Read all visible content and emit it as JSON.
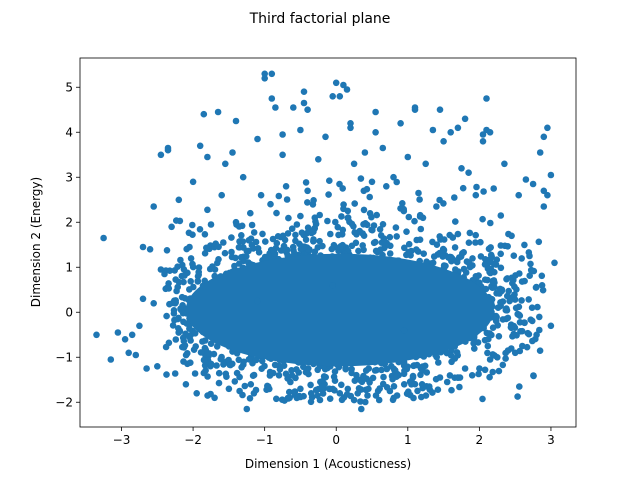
{
  "chart_data": {
    "type": "scatter",
    "title": "Third factorial plane",
    "xlabel": "Dimension 1 (Acousticness)",
    "ylabel": "Dimension 2 (Energy)",
    "xlim": [
      -3.58,
      3.35
    ],
    "ylim": [
      -2.55,
      5.65
    ],
    "xticks": [
      -3,
      -2,
      -1,
      0,
      1,
      2,
      3
    ],
    "xtick_labels": [
      "−3",
      "−2",
      "−1",
      "0",
      "1",
      "2",
      "3"
    ],
    "yticks": [
      -2,
      -1,
      0,
      1,
      2,
      3,
      4,
      5
    ],
    "ytick_labels": [
      "−2",
      "−1",
      "0",
      "1",
      "2",
      "3",
      "4",
      "5"
    ],
    "grid": false,
    "legend": "none",
    "marker_color": "#1f77b4",
    "series": [
      {
        "x": [
          -3.25,
          -3.35,
          -3.15,
          -3.05,
          -2.95,
          -2.9,
          -2.85,
          -2.8,
          -2.75,
          -2.7,
          -2.7,
          -2.65,
          -2.6,
          -2.55,
          -2.55,
          -2.5,
          -2.45,
          -2.4,
          -2.35,
          -2.3,
          -2.25,
          -2.2,
          -2.15,
          -2.1,
          -2.05,
          -2.0,
          -1.95,
          -1.9,
          -1.85,
          -1.8,
          -1.75,
          -1.7,
          -1.65,
          -1.6,
          -1.55,
          -1.5,
          -1.45,
          -1.4,
          -1.35,
          -1.3,
          -1.25,
          -1.2,
          -1.15,
          -1.1,
          -1.05,
          -1.0,
          -0.95,
          -0.9,
          -0.85,
          -0.8,
          -0.75,
          -0.7,
          -0.65,
          -0.6,
          -0.55,
          -0.5,
          -0.45,
          -0.4,
          -0.35,
          -0.3,
          -0.25,
          -0.2,
          -0.15,
          -0.1,
          -0.05,
          0.0,
          0.05,
          0.1,
          0.15,
          0.2,
          0.25,
          0.3,
          0.35,
          0.4,
          0.45,
          0.5,
          0.55,
          0.6,
          0.65,
          0.7,
          0.75,
          0.8,
          0.85,
          0.9,
          0.95,
          1.0,
          1.05,
          1.1,
          1.15,
          1.2,
          1.25,
          1.3,
          1.35,
          1.4,
          1.45,
          1.5,
          1.55,
          1.6,
          1.65,
          1.7,
          1.75,
          1.8,
          1.85,
          1.9,
          1.95,
          2.0,
          2.05,
          2.1,
          2.15,
          2.2,
          2.25,
          2.3,
          2.35,
          2.4,
          2.45,
          2.5,
          2.55,
          2.6,
          2.65,
          2.7,
          2.75,
          2.8,
          2.85,
          2.9,
          2.95,
          3.0,
          3.05,
          -1.0,
          -0.9,
          -0.75,
          -0.5,
          -0.4,
          0.05,
          0.1,
          0.2,
          1.1,
          1.45,
          1.8,
          2.1,
          2.15,
          2.9,
          2.95,
          -2.35,
          -2.45,
          -1.85,
          -1.4,
          -0.45,
          0.55,
          1.7,
          2.05,
          -1.1,
          -0.05,
          0.95,
          1.95,
          2.9,
          3.0
        ],
        "y": [
          1.65,
          -0.5,
          -1.05,
          -0.45,
          -0.6,
          -0.9,
          -0.5,
          -0.95,
          -0.3,
          1.45,
          0.3,
          -1.25,
          1.4,
          2.35,
          0.2,
          -1.2,
          0.95,
          0.85,
          3.6,
          1.9,
          0.2,
          2.5,
          1.05,
          -1.6,
          1.45,
          2.9,
          -1.8,
          3.7,
          -1.35,
          3.45,
          1.95,
          -1.9,
          4.45,
          2.6,
          3.3,
          -1.7,
          3.55,
          2.0,
          -1.75,
          3.0,
          -2.15,
          2.2,
          -1.8,
          3.85,
          2.6,
          5.2,
          -1.65,
          5.3,
          4.55,
          -1.4,
          3.5,
          2.8,
          -1.9,
          4.55,
          1.95,
          -1.7,
          4.9,
          2.7,
          -1.8,
          2.1,
          3.4,
          -1.65,
          3.9,
          -1.7,
          4.8,
          5.1,
          -1.8,
          2.3,
          4.95,
          4.1,
          3.3,
          -1.8,
          -2.15,
          3.55,
          -1.7,
          2.9,
          4.0,
          -1.95,
          3.65,
          2.8,
          -1.75,
          3.0,
          -1.85,
          4.2,
          -1.6,
          3.45,
          -1.6,
          4.5,
          2.65,
          -1.6,
          3.3,
          -1.65,
          4.05,
          2.35,
          -1.45,
          3.8,
          -1.55,
          4.0,
          2.55,
          -1.45,
          3.2,
          -1.25,
          3.1,
          -1.4,
          2.6,
          -1.25,
          3.8,
          4.75,
          -1.05,
          2.75,
          -1.0,
          2.15,
          3.3,
          -0.85,
          1.7,
          -0.9,
          2.6,
          -0.75,
          2.95,
          1.25,
          2.85,
          -0.5,
          3.55,
          2.7,
          2.6,
          -0.3,
          1.1,
          5.3,
          4.75,
          3.95,
          4.05,
          4.5,
          4.8,
          5.05,
          4.2,
          4.55,
          4.5,
          4.3,
          4.05,
          4.0,
          3.9,
          4.1,
          3.65,
          3.5,
          4.4,
          4.25,
          4.65,
          4.45,
          4.1,
          3.95,
          0.25,
          0.6,
          -0.4,
          0.8,
          2.35,
          3.05
        ]
      }
    ],
    "dense_region": {
      "note_excluded": true,
      "x_center": 0.0,
      "y_center": 0.1,
      "x_spread": 1.55,
      "y_spread": 0.75
    }
  }
}
